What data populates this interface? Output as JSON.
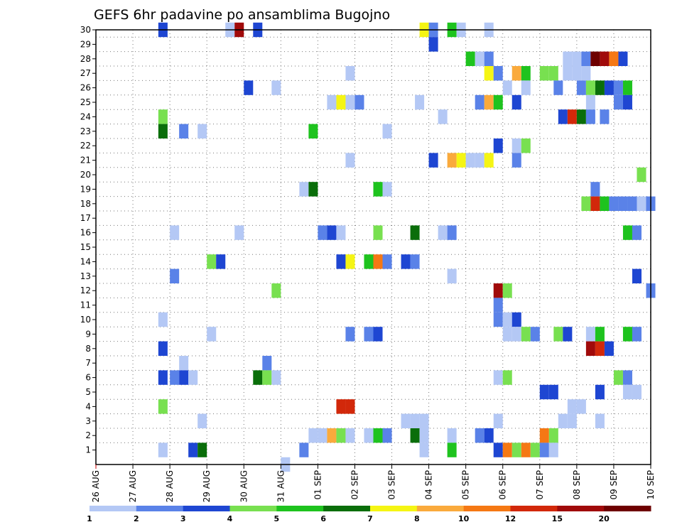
{
  "chart_data": {
    "type": "heatmap",
    "title": "GEFS 6hr padavine po ansamblima Bugojno",
    "xlabel": "",
    "ylabel": "",
    "x_tick_labels": [
      "26 AUG",
      "27 AUG",
      "28 AUG",
      "29 AUG",
      "30 AUG",
      "31 AUG",
      "01 SEP",
      "02 SEP",
      "03 SEP",
      "04 SEP",
      "05 SEP",
      "06 SEP",
      "07 SEP",
      "08 SEP",
      "09 SEP",
      "10 SEP"
    ],
    "y_tick_labels": [
      "1",
      "2",
      "3",
      "4",
      "5",
      "6",
      "7",
      "8",
      "9",
      "10",
      "11",
      "12",
      "13",
      "14",
      "15",
      "16",
      "17",
      "18",
      "19",
      "20",
      "21",
      "22",
      "23",
      "24",
      "25",
      "26",
      "27",
      "28",
      "29",
      "30"
    ],
    "time_steps_per_day": 4,
    "time_range_steps": [
      0,
      60
    ],
    "ylim": [
      0,
      30
    ],
    "grid": true,
    "colorbar": {
      "levels": [
        "1",
        "2",
        "3",
        "4",
        "5",
        "6",
        "7",
        "8",
        "10",
        "12",
        "15",
        "20"
      ],
      "colors": [
        "#b4c8f5",
        "#5a82e8",
        "#1e46d2",
        "#78e050",
        "#1ec31e",
        "#0a6e0a",
        "#f5f514",
        "#faaa3c",
        "#f57814",
        "#d2280a",
        "#a00a0a",
        "#6e0000"
      ]
    },
    "cells": [
      {
        "t": 7.25,
        "m": 30,
        "v": 3
      },
      {
        "t": 14.5,
        "m": 30,
        "v": 1
      },
      {
        "t": 15.5,
        "m": 30,
        "v": 11
      },
      {
        "t": 17.5,
        "m": 30,
        "v": 3
      },
      {
        "t": 35.5,
        "m": 30,
        "v": 7
      },
      {
        "t": 36.5,
        "m": 30,
        "v": 2
      },
      {
        "t": 38.5,
        "m": 30,
        "v": 5
      },
      {
        "t": 39.5,
        "m": 30,
        "v": 1
      },
      {
        "t": 42.5,
        "m": 30,
        "v": 1
      },
      {
        "t": 36.5,
        "m": 29,
        "v": 3
      },
      {
        "t": 40.5,
        "m": 28,
        "v": 5
      },
      {
        "t": 41.5,
        "m": 28,
        "v": 1
      },
      {
        "t": 42.5,
        "m": 28,
        "v": 2
      },
      {
        "t": 51,
        "m": 28,
        "v": 1
      },
      {
        "t": 52,
        "m": 28,
        "v": 1
      },
      {
        "t": 53,
        "m": 28,
        "v": 2
      },
      {
        "t": 54,
        "m": 28,
        "v": 12
      },
      {
        "t": 55,
        "m": 28,
        "v": 11
      },
      {
        "t": 56,
        "m": 28,
        "v": 9
      },
      {
        "t": 57,
        "m": 28,
        "v": 3
      },
      {
        "t": 27.5,
        "m": 27,
        "v": 1
      },
      {
        "t": 42.5,
        "m": 27,
        "v": 7
      },
      {
        "t": 43.5,
        "m": 27,
        "v": 2
      },
      {
        "t": 45.5,
        "m": 27,
        "v": 8
      },
      {
        "t": 46.5,
        "m": 27,
        "v": 5
      },
      {
        "t": 48.5,
        "m": 27,
        "v": 4
      },
      {
        "t": 49.5,
        "m": 27,
        "v": 4
      },
      {
        "t": 51,
        "m": 27,
        "v": 1
      },
      {
        "t": 52,
        "m": 27,
        "v": 1
      },
      {
        "t": 53,
        "m": 27,
        "v": 1
      },
      {
        "t": 16.5,
        "m": 26,
        "v": 3
      },
      {
        "t": 19.5,
        "m": 26,
        "v": 1
      },
      {
        "t": 44.5,
        "m": 26,
        "v": 1
      },
      {
        "t": 46.5,
        "m": 26,
        "v": 1
      },
      {
        "t": 50,
        "m": 26,
        "v": 2
      },
      {
        "t": 52.5,
        "m": 26,
        "v": 2
      },
      {
        "t": 53.5,
        "m": 26,
        "v": 4
      },
      {
        "t": 54.5,
        "m": 26,
        "v": 6
      },
      {
        "t": 55.5,
        "m": 26,
        "v": 3
      },
      {
        "t": 56.5,
        "m": 26,
        "v": 2
      },
      {
        "t": 57.5,
        "m": 26,
        "v": 5
      },
      {
        "t": 25.5,
        "m": 25,
        "v": 1
      },
      {
        "t": 26.5,
        "m": 25,
        "v": 7
      },
      {
        "t": 27.5,
        "m": 25,
        "v": 1
      },
      {
        "t": 28.5,
        "m": 25,
        "v": 2
      },
      {
        "t": 35,
        "m": 25,
        "v": 1
      },
      {
        "t": 41.5,
        "m": 25,
        "v": 2
      },
      {
        "t": 42.5,
        "m": 25,
        "v": 8
      },
      {
        "t": 43.5,
        "m": 25,
        "v": 5
      },
      {
        "t": 45.5,
        "m": 25,
        "v": 3
      },
      {
        "t": 53.5,
        "m": 25,
        "v": 1
      },
      {
        "t": 56.5,
        "m": 25,
        "v": 2
      },
      {
        "t": 57.5,
        "m": 25,
        "v": 3
      },
      {
        "t": 7.25,
        "m": 24,
        "v": 4
      },
      {
        "t": 37.5,
        "m": 24,
        "v": 1
      },
      {
        "t": 50.5,
        "m": 24,
        "v": 3
      },
      {
        "t": 51.5,
        "m": 24,
        "v": 10
      },
      {
        "t": 52.5,
        "m": 24,
        "v": 6
      },
      {
        "t": 53.5,
        "m": 24,
        "v": 2
      },
      {
        "t": 55,
        "m": 24,
        "v": 2
      },
      {
        "t": 7.25,
        "m": 23,
        "v": 6
      },
      {
        "t": 9.5,
        "m": 23,
        "v": 2
      },
      {
        "t": 11.5,
        "m": 23,
        "v": 1
      },
      {
        "t": 23.5,
        "m": 23,
        "v": 5
      },
      {
        "t": 31.5,
        "m": 23,
        "v": 1
      },
      {
        "t": 43.5,
        "m": 22,
        "v": 3
      },
      {
        "t": 45.5,
        "m": 22,
        "v": 1
      },
      {
        "t": 46.5,
        "m": 22,
        "v": 4
      },
      {
        "t": 27.5,
        "m": 21,
        "v": 1
      },
      {
        "t": 36.5,
        "m": 21,
        "v": 3
      },
      {
        "t": 38.5,
        "m": 21,
        "v": 8
      },
      {
        "t": 39.5,
        "m": 21,
        "v": 7
      },
      {
        "t": 40.5,
        "m": 21,
        "v": 1
      },
      {
        "t": 41.5,
        "m": 21,
        "v": 1
      },
      {
        "t": 42.5,
        "m": 21,
        "v": 7
      },
      {
        "t": 45.5,
        "m": 21,
        "v": 2
      },
      {
        "t": 59,
        "m": 20,
        "v": 4
      },
      {
        "t": 22.5,
        "m": 19,
        "v": 1
      },
      {
        "t": 23.5,
        "m": 19,
        "v": 6
      },
      {
        "t": 30.5,
        "m": 19,
        "v": 5
      },
      {
        "t": 31.5,
        "m": 19,
        "v": 1
      },
      {
        "t": 54,
        "m": 19,
        "v": 2
      },
      {
        "t": 53,
        "m": 18,
        "v": 4
      },
      {
        "t": 54,
        "m": 18,
        "v": 10
      },
      {
        "t": 55,
        "m": 18,
        "v": 5
      },
      {
        "t": 56,
        "m": 18,
        "v": 2
      },
      {
        "t": 57,
        "m": 18,
        "v": 2
      },
      {
        "t": 58,
        "m": 18,
        "v": 2
      },
      {
        "t": 59,
        "m": 18,
        "v": 1
      },
      {
        "t": 60,
        "m": 18,
        "v": 2
      },
      {
        "t": 8.5,
        "m": 16,
        "v": 1
      },
      {
        "t": 15.5,
        "m": 16,
        "v": 1
      },
      {
        "t": 24.5,
        "m": 16,
        "v": 2
      },
      {
        "t": 25.5,
        "m": 16,
        "v": 3
      },
      {
        "t": 26.5,
        "m": 16,
        "v": 1
      },
      {
        "t": 30.5,
        "m": 16,
        "v": 4
      },
      {
        "t": 34.5,
        "m": 16,
        "v": 6
      },
      {
        "t": 37.5,
        "m": 16,
        "v": 1
      },
      {
        "t": 38.5,
        "m": 16,
        "v": 2
      },
      {
        "t": 57.5,
        "m": 16,
        "v": 5
      },
      {
        "t": 58.5,
        "m": 16,
        "v": 2
      },
      {
        "t": 12.5,
        "m": 14,
        "v": 4
      },
      {
        "t": 13.5,
        "m": 14,
        "v": 3
      },
      {
        "t": 26.5,
        "m": 14,
        "v": 3
      },
      {
        "t": 27.5,
        "m": 14,
        "v": 7
      },
      {
        "t": 29.5,
        "m": 14,
        "v": 5
      },
      {
        "t": 30.5,
        "m": 14,
        "v": 9
      },
      {
        "t": 31.5,
        "m": 14,
        "v": 2
      },
      {
        "t": 33.5,
        "m": 14,
        "v": 3
      },
      {
        "t": 34.5,
        "m": 14,
        "v": 2
      },
      {
        "t": 8.5,
        "m": 13,
        "v": 2
      },
      {
        "t": 38.5,
        "m": 13,
        "v": 1
      },
      {
        "t": 58.5,
        "m": 13,
        "v": 3
      },
      {
        "t": 19.5,
        "m": 12,
        "v": 4
      },
      {
        "t": 43.5,
        "m": 12,
        "v": 11
      },
      {
        "t": 44.5,
        "m": 12,
        "v": 4
      },
      {
        "t": 60,
        "m": 12,
        "v": 2
      },
      {
        "t": 43.5,
        "m": 11,
        "v": 2
      },
      {
        "t": 7.25,
        "m": 10,
        "v": 1
      },
      {
        "t": 43.5,
        "m": 10,
        "v": 2
      },
      {
        "t": 44.5,
        "m": 10,
        "v": 1
      },
      {
        "t": 45.5,
        "m": 10,
        "v": 3
      },
      {
        "t": 12.5,
        "m": 9,
        "v": 1
      },
      {
        "t": 27.5,
        "m": 9,
        "v": 2
      },
      {
        "t": 29.5,
        "m": 9,
        "v": 2
      },
      {
        "t": 30.5,
        "m": 9,
        "v": 3
      },
      {
        "t": 44.5,
        "m": 9,
        "v": 1
      },
      {
        "t": 45.5,
        "m": 9,
        "v": 1
      },
      {
        "t": 46.5,
        "m": 9,
        "v": 4
      },
      {
        "t": 47.5,
        "m": 9,
        "v": 2
      },
      {
        "t": 50,
        "m": 9,
        "v": 4
      },
      {
        "t": 51,
        "m": 9,
        "v": 3
      },
      {
        "t": 53.5,
        "m": 9,
        "v": 1
      },
      {
        "t": 54.5,
        "m": 9,
        "v": 5
      },
      {
        "t": 57.5,
        "m": 9,
        "v": 5
      },
      {
        "t": 58.5,
        "m": 9,
        "v": 2
      },
      {
        "t": 7.25,
        "m": 8,
        "v": 3
      },
      {
        "t": 53.5,
        "m": 8,
        "v": 11
      },
      {
        "t": 54.5,
        "m": 8,
        "v": 10
      },
      {
        "t": 55.5,
        "m": 8,
        "v": 3
      },
      {
        "t": 9.5,
        "m": 7,
        "v": 1
      },
      {
        "t": 18.5,
        "m": 7,
        "v": 2
      },
      {
        "t": 7.25,
        "m": 6,
        "v": 3
      },
      {
        "t": 8.5,
        "m": 6,
        "v": 2
      },
      {
        "t": 9.5,
        "m": 6,
        "v": 3
      },
      {
        "t": 10.5,
        "m": 6,
        "v": 1
      },
      {
        "t": 17.5,
        "m": 6,
        "v": 6
      },
      {
        "t": 18.5,
        "m": 6,
        "v": 4
      },
      {
        "t": 19.5,
        "m": 6,
        "v": 1
      },
      {
        "t": 43.5,
        "m": 6,
        "v": 1
      },
      {
        "t": 44.5,
        "m": 6,
        "v": 4
      },
      {
        "t": 56.5,
        "m": 6,
        "v": 4
      },
      {
        "t": 57.5,
        "m": 6,
        "v": 2
      },
      {
        "t": 48.5,
        "m": 5,
        "v": 3
      },
      {
        "t": 49.5,
        "m": 5,
        "v": 3
      },
      {
        "t": 54.5,
        "m": 5,
        "v": 3
      },
      {
        "t": 57.5,
        "m": 5,
        "v": 1
      },
      {
        "t": 58.5,
        "m": 5,
        "v": 1
      },
      {
        "t": 7.25,
        "m": 4,
        "v": 4
      },
      {
        "t": 26.5,
        "m": 4,
        "v": 10
      },
      {
        "t": 27.5,
        "m": 4,
        "v": 10
      },
      {
        "t": 51.5,
        "m": 4,
        "v": 1
      },
      {
        "t": 52.5,
        "m": 4,
        "v": 1
      },
      {
        "t": 11.5,
        "m": 3,
        "v": 1
      },
      {
        "t": 33.5,
        "m": 3,
        "v": 1
      },
      {
        "t": 34.5,
        "m": 3,
        "v": 1
      },
      {
        "t": 35.5,
        "m": 3,
        "v": 1
      },
      {
        "t": 43.5,
        "m": 3,
        "v": 1
      },
      {
        "t": 50.5,
        "m": 3,
        "v": 1
      },
      {
        "t": 51.5,
        "m": 3,
        "v": 1
      },
      {
        "t": 54.5,
        "m": 3,
        "v": 1
      },
      {
        "t": 23.5,
        "m": 2,
        "v": 1
      },
      {
        "t": 24.5,
        "m": 2,
        "v": 1
      },
      {
        "t": 25.5,
        "m": 2,
        "v": 8
      },
      {
        "t": 26.5,
        "m": 2,
        "v": 4
      },
      {
        "t": 27.5,
        "m": 2,
        "v": 1
      },
      {
        "t": 29.5,
        "m": 2,
        "v": 1
      },
      {
        "t": 30.5,
        "m": 2,
        "v": 5
      },
      {
        "t": 31.5,
        "m": 2,
        "v": 2
      },
      {
        "t": 34.5,
        "m": 2,
        "v": 6
      },
      {
        "t": 35.5,
        "m": 2,
        "v": 1
      },
      {
        "t": 38.5,
        "m": 2,
        "v": 1
      },
      {
        "t": 41.5,
        "m": 2,
        "v": 2
      },
      {
        "t": 42.5,
        "m": 2,
        "v": 3
      },
      {
        "t": 48.5,
        "m": 2,
        "v": 9
      },
      {
        "t": 49.5,
        "m": 2,
        "v": 4
      },
      {
        "t": 7.25,
        "m": 1,
        "v": 1
      },
      {
        "t": 10.5,
        "m": 1,
        "v": 3
      },
      {
        "t": 11.5,
        "m": 1,
        "v": 6
      },
      {
        "t": 22.5,
        "m": 1,
        "v": 2
      },
      {
        "t": 35.5,
        "m": 1,
        "v": 1
      },
      {
        "t": 38.5,
        "m": 1,
        "v": 5
      },
      {
        "t": 43.5,
        "m": 1,
        "v": 3
      },
      {
        "t": 44.5,
        "m": 1,
        "v": 9
      },
      {
        "t": 45.5,
        "m": 1,
        "v": 4
      },
      {
        "t": 46.5,
        "m": 1,
        "v": 9
      },
      {
        "t": 47.5,
        "m": 1,
        "v": 4
      },
      {
        "t": 48.5,
        "m": 1,
        "v": 2
      },
      {
        "t": 49.5,
        "m": 1,
        "v": 1
      },
      {
        "t": 20.5,
        "m": 0,
        "v": 1
      }
    ]
  }
}
